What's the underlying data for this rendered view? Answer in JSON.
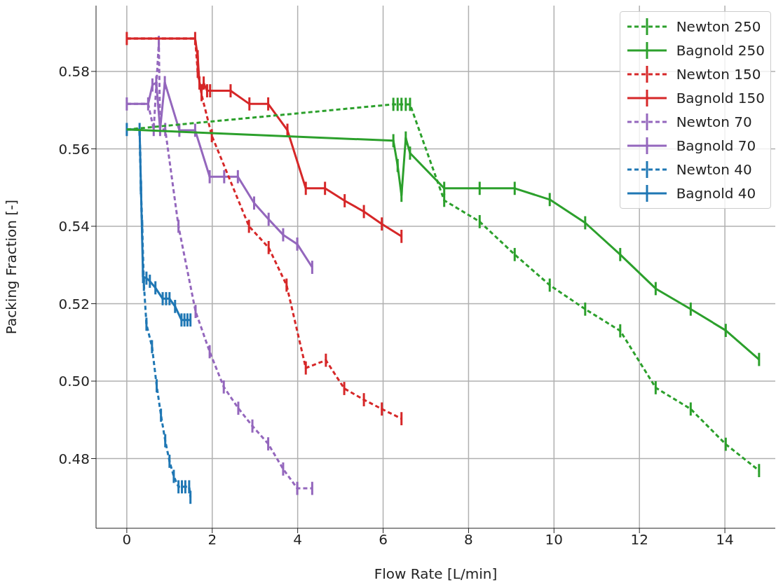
{
  "chart_data": {
    "type": "line",
    "xlabel": "Flow Rate [L/min]",
    "ylabel": "Packing Fraction [-]",
    "xlim": [
      -0.72,
      15.18
    ],
    "xticks": [
      0,
      2,
      4,
      6,
      8,
      10,
      12,
      14
    ],
    "ylim": [
      0.462,
      0.597
    ],
    "yticks": [
      0.48,
      {
        "value": 0.5,
        "label": "0.50"
      },
      0.52,
      0.54,
      0.56,
      0.58
    ],
    "grid": true,
    "legend": "top right",
    "marker": "none",
    "series": [
      {
        "name": "Newton 250",
        "color": "#2ca02c",
        "line_style": "dashed",
        "x": [
          0,
          6.24,
          6.34,
          6.43,
          6.53,
          6.63,
          7.43,
          8.26,
          9.08,
          9.9,
          10.73,
          11.55,
          12.38,
          13.2,
          14.02,
          14.8
        ],
        "values": [
          0.565,
          0.5715,
          0.5715,
          0.5715,
          0.5715,
          0.5715,
          0.5467,
          0.5412,
          0.5327,
          0.5248,
          0.5186,
          0.513,
          0.4983,
          0.4928,
          0.4837,
          0.4769
        ],
        "errors": [
          null,
          0.0017,
          0.0017,
          0.0017,
          0.0017,
          0.0017,
          0.0017,
          0.0017,
          0.0017,
          0.0017,
          0.0017,
          0.0017,
          0.0017,
          0.0017,
          0.0017,
          0.0017
        ]
      },
      {
        "name": "Bagnold 250",
        "color": "#2ca02c",
        "line_style": "solid",
        "x": [
          0,
          6.24,
          6.34,
          6.43,
          6.53,
          6.63,
          7.43,
          8.26,
          9.08,
          9.9,
          10.73,
          11.55,
          12.38,
          13.2,
          14.02,
          14.8
        ],
        "values": [
          0.565,
          0.5621,
          0.5557,
          0.548,
          0.5628,
          0.5589,
          0.5498,
          0.5498,
          0.5498,
          0.5469,
          0.5409,
          0.5327,
          0.5239,
          0.5186,
          0.5131,
          0.5056
        ],
        "errors": [
          null,
          0.0017,
          0.0017,
          0.0017,
          0.0017,
          0.0017,
          0.0017,
          0.0017,
          0.0017,
          0.0017,
          0.0017,
          0.0017,
          0.0017,
          0.0017,
          0.0017,
          0.0017
        ]
      },
      {
        "name": "Newton 150",
        "color": "#d62728",
        "line_style": "dashed",
        "x": [
          0,
          1.6,
          1.66,
          1.75,
          1.99,
          2.86,
          3.32,
          3.74,
          4.19,
          4.66,
          5.09,
          5.55,
          5.97,
          6.43
        ],
        "values": [
          0.5885,
          0.5885,
          0.58,
          0.574,
          0.5634,
          0.54,
          0.5345,
          0.5248,
          0.5034,
          0.5054,
          0.4981,
          0.4952,
          0.4928,
          0.4903
        ],
        "errors": [
          null,
          null,
          0.0017,
          0.0017,
          0.0017,
          0.0017,
          0.0017,
          0.0017,
          0.0017,
          0.0017,
          0.0017,
          0.0017,
          0.0017,
          0.0017
        ]
      },
      {
        "name": "Bagnold 150",
        "color": "#d62728",
        "line_style": "solid",
        "x": [
          0,
          1.6,
          1.66,
          1.7,
          1.75,
          1.8,
          1.88,
          1.95,
          2.43,
          2.87,
          3.31,
          3.76,
          4.19,
          4.64,
          5.1,
          5.55,
          5.97,
          6.43
        ],
        "values": [
          0.5885,
          0.5885,
          0.5838,
          0.577,
          0.575,
          0.577,
          0.575,
          0.575,
          0.575,
          0.5716,
          0.5716,
          0.5648,
          0.5498,
          0.5498,
          0.5466,
          0.5438,
          0.5406,
          0.5374
        ],
        "errors": [
          0.0017,
          0.0017,
          0.0017,
          0.0017,
          0.0017,
          0.0017,
          0.0017,
          0.0017,
          0.0017,
          0.0017,
          0.0017,
          0.0017,
          0.0017,
          0.0017,
          0.0017,
          0.0017,
          0.0017,
          0.0017
        ]
      },
      {
        "name": "Newton 70",
        "color": "#9467bd",
        "line_style": "dashed",
        "x": [
          0,
          0.5,
          0.63,
          0.75,
          0.78,
          0.9,
          1.21,
          1.61,
          1.94,
          2.27,
          2.61,
          2.94,
          3.31,
          3.66,
          3.99,
          4.34
        ],
        "values": [
          0.5716,
          0.5716,
          0.565,
          0.5875,
          0.565,
          0.565,
          0.54,
          0.518,
          0.5076,
          0.4985,
          0.493,
          0.4884,
          0.4838,
          0.4773,
          0.4723,
          0.4723
        ],
        "errors": [
          null,
          null,
          0.0017,
          0.0017,
          null,
          0.0017,
          0.0017,
          0.0017,
          0.0017,
          0.0017,
          0.0017,
          0.0017,
          0.0017,
          0.0017,
          0.0017,
          0.0017
        ]
      },
      {
        "name": "Bagnold 70",
        "color": "#9467bd",
        "line_style": "solid",
        "x": [
          0,
          0.5,
          0.6,
          0.69,
          0.78,
          0.89,
          1.23,
          1.6,
          1.94,
          2.28,
          2.6,
          2.98,
          3.32,
          3.66,
          3.99,
          4.34
        ],
        "values": [
          0.5716,
          0.5716,
          0.5765,
          0.5771,
          0.565,
          0.5771,
          0.5648,
          0.5648,
          0.5528,
          0.5528,
          0.5528,
          0.546,
          0.5418,
          0.5378,
          0.5354,
          0.5294
        ],
        "errors": [
          0.0017,
          0.0017,
          0.0017,
          0.0017,
          0.0017,
          0.0017,
          0.0017,
          0.0017,
          0.0017,
          0.0017,
          0.0017,
          0.0017,
          0.0017,
          0.0017,
          0.0017,
          0.0017
        ]
      },
      {
        "name": "Newton 40",
        "color": "#1f77b4",
        "line_style": "dashed",
        "x": [
          0,
          0.3,
          0.33,
          0.36,
          0.4,
          0.46,
          0.59,
          0.7,
          0.8,
          0.9,
          1.0,
          1.1,
          1.21,
          1.29,
          1.37,
          1.46,
          1.49
        ],
        "values": [
          0.565,
          0.565,
          0.55,
          0.54,
          0.525,
          0.5147,
          0.5089,
          0.4988,
          0.4912,
          0.4846,
          0.4793,
          0.4754,
          0.4727,
          0.4727,
          0.4727,
          0.4727,
          0.47
        ],
        "errors": [
          null,
          null,
          0.0017,
          0.0017,
          0.0017,
          0.0017,
          0.0017,
          0.0017,
          0.0017,
          0.0017,
          0.0017,
          0.0017,
          0.0017,
          0.0017,
          0.0017,
          0.0017,
          0.0017
        ]
      },
      {
        "name": "Bagnold 40",
        "color": "#1f77b4",
        "line_style": "solid",
        "x": [
          0,
          0.3,
          0.38,
          0.46,
          0.54,
          0.67,
          0.84,
          0.92,
          1.0,
          1.13,
          1.28,
          1.35,
          1.42,
          1.49
        ],
        "values": [
          0.565,
          0.565,
          0.527,
          0.5266,
          0.5258,
          0.5241,
          0.5213,
          0.5213,
          0.5213,
          0.5193,
          0.5158,
          0.5158,
          0.5158,
          0.5158
        ],
        "errors": [
          0.0017,
          0.0017,
          0.0017,
          0.0017,
          0.0017,
          0.0017,
          0.0017,
          0.0017,
          0.0017,
          0.0017,
          0.0017,
          0.0017,
          0.0017,
          0.0017
        ]
      }
    ]
  }
}
